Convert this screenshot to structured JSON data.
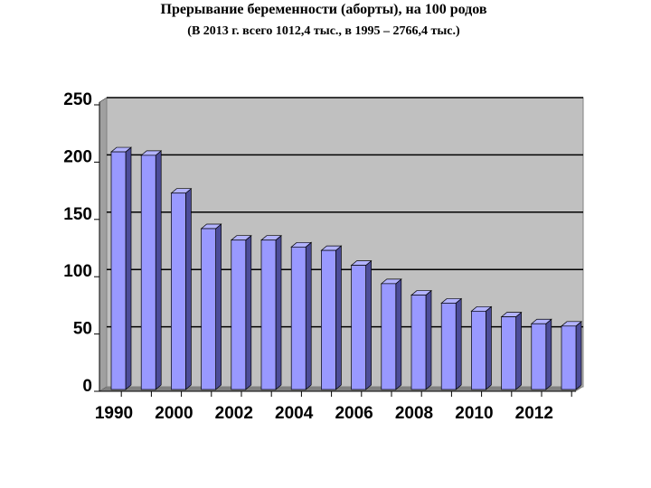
{
  "chart_data": {
    "type": "bar3d",
    "title": "Прерывание беременности (аборты), на 100 родов",
    "subtitle": "(В 2013 г. всего 1012,4 тыс., в 1995 – 2766,4 тыс.)",
    "categories": [
      "1990",
      null,
      "2000",
      null,
      "2002",
      null,
      "2004",
      null,
      "2006",
      null,
      "2008",
      null,
      "2010",
      null,
      "2012",
      null
    ],
    "values": [
      205,
      202,
      169,
      138,
      128,
      128,
      122,
      119,
      106,
      90,
      80,
      73,
      66,
      61,
      55,
      53
    ],
    "color": "#9999ff",
    "ylim": [
      0,
      250
    ],
    "yticks": [
      0,
      50,
      100,
      150,
      200,
      250
    ],
    "grid": true
  }
}
